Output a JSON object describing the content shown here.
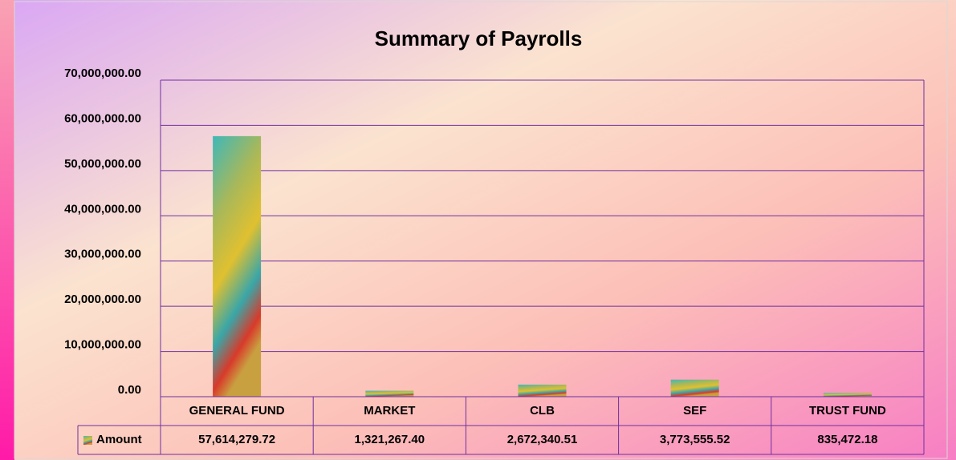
{
  "chart_data": {
    "type": "bar",
    "title": "Summary of Payrolls",
    "categories": [
      "GENERAL FUND",
      "MARKET",
      "CLB",
      "SEF",
      "TRUST FUND"
    ],
    "series": [
      {
        "name": "Amount",
        "values": [
          57614279.72,
          1321267.4,
          2672340.51,
          3773555.52,
          835472.18
        ],
        "value_labels": [
          "57,614,279.72",
          "1,321,267.40",
          "2,672,340.51",
          "3,773,555.52",
          "835,472.18"
        ]
      }
    ],
    "ylim": [
      0,
      70000000
    ],
    "yticks": [
      {
        "value": 0,
        "label": "0.00"
      },
      {
        "value": 10000000,
        "label": "10,000,000.00"
      },
      {
        "value": 20000000,
        "label": "20,000,000.00"
      },
      {
        "value": 30000000,
        "label": "30,000,000.00"
      },
      {
        "value": 40000000,
        "label": "40,000,000.00"
      },
      {
        "value": 50000000,
        "label": "50,000,000.00"
      },
      {
        "value": 60000000,
        "label": "60,000,000.00"
      },
      {
        "value": 70000000,
        "label": "70,000,000.00"
      }
    ],
    "grid": true
  }
}
